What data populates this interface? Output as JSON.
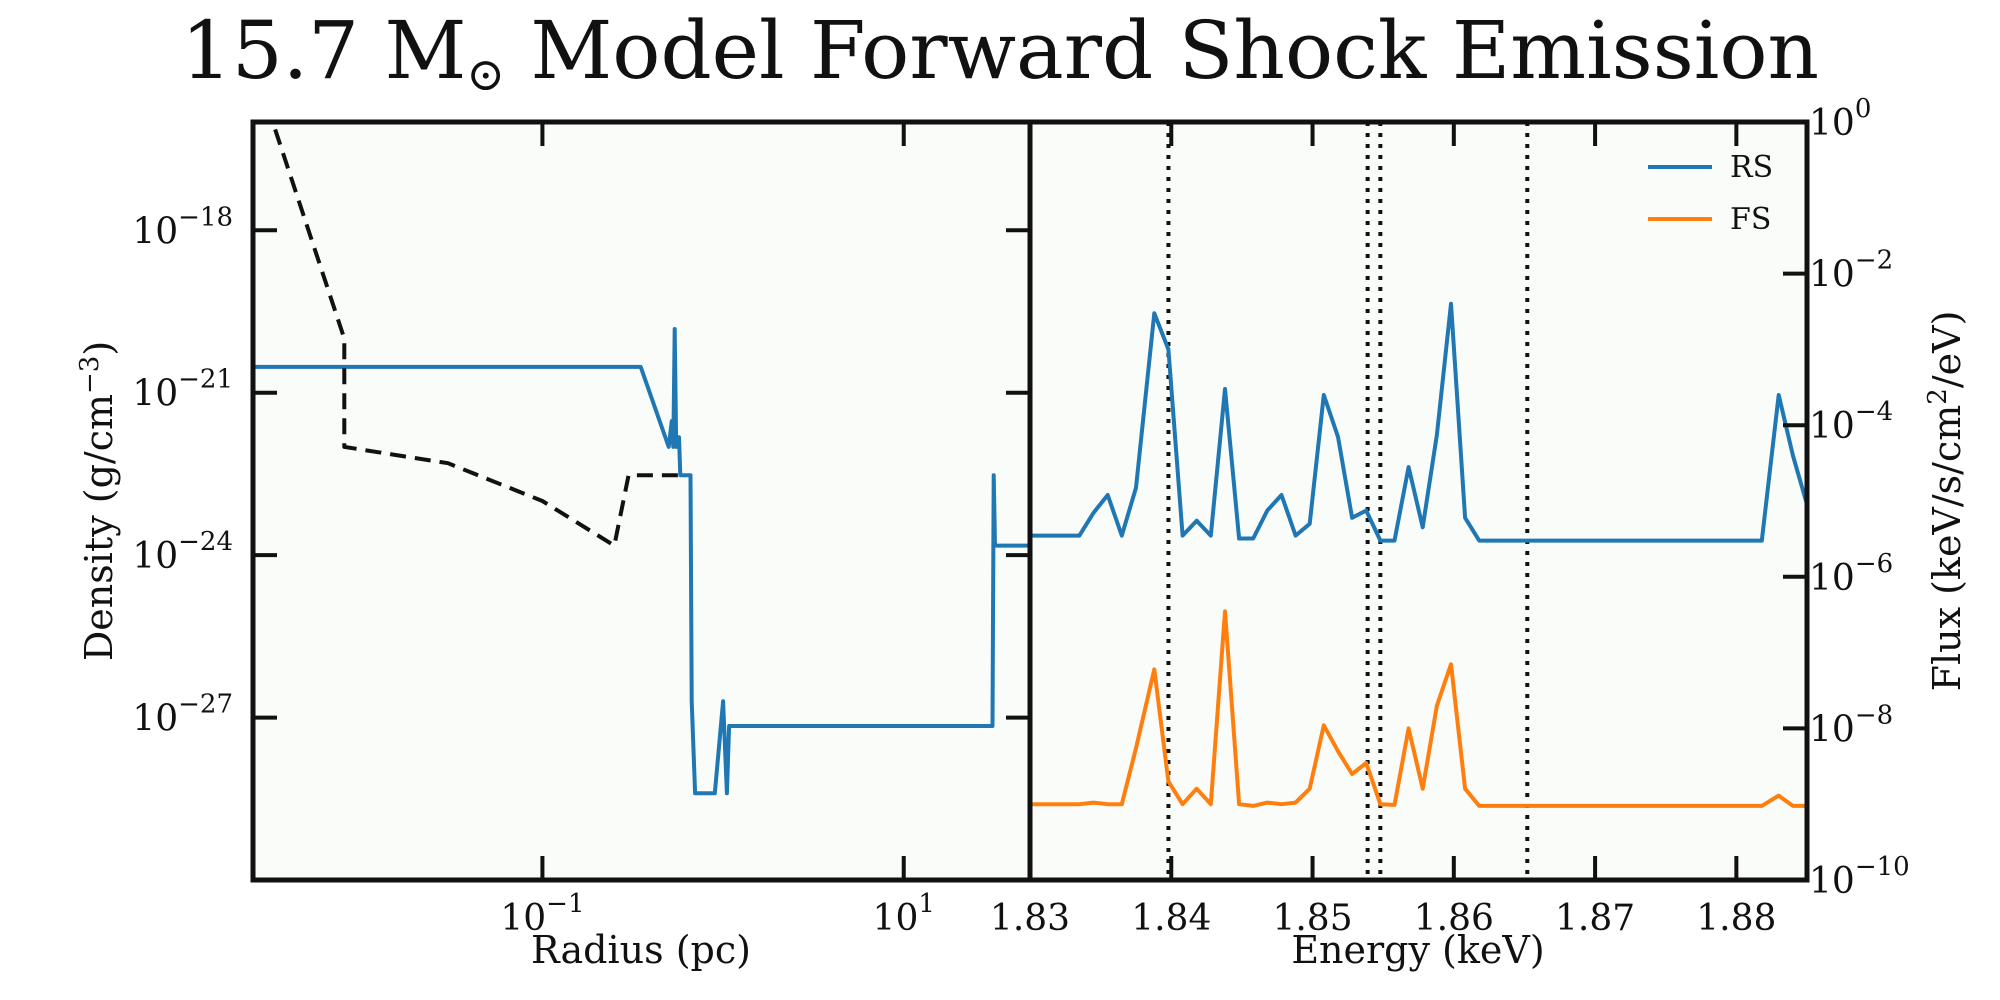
{
  "figure": {
    "title": "15.7 M",
    "title_symbol": "⊙",
    "title_rest": " Model Forward Shock Emission"
  },
  "chart_data": [
    {
      "type": "line",
      "xlabel": "Radius (pc)",
      "ylabel_main": "Density (g/cm",
      "ylabel_sup": "−3",
      "ylabel_end": ")",
      "xscale": "log",
      "yscale": "log",
      "xlim": [
        0.0025,
        50
      ],
      "ylim": [
        1e-30,
        1e-16
      ],
      "x_ticks": [
        {
          "value": 0.1,
          "base": "10",
          "exp": "−1"
        },
        {
          "value": 10,
          "base": "10",
          "exp": "1"
        }
      ],
      "y_ticks": [
        {
          "value": 1e-18,
          "base": "10",
          "exp": "−18"
        },
        {
          "value": 1e-21,
          "base": "10",
          "exp": "−21"
        },
        {
          "value": 1e-24,
          "base": "10",
          "exp": "−24"
        },
        {
          "value": 1e-27,
          "base": "10",
          "exp": "−27"
        }
      ],
      "series": [
        {
          "style": "solid",
          "color": "#1f77b4",
          "x": [
            0.0025,
            0.35,
            0.5,
            0.52,
            0.53,
            0.54,
            0.55,
            0.56,
            0.57,
            0.58,
            0.6,
            0.62,
            0.66,
            0.67,
            0.7,
            0.75,
            0.9,
            1.0,
            1.05,
            1.08,
            1.1,
            1.15,
            30,
            31,
            31.5,
            32,
            35,
            50
          ],
          "y": [
            3e-21,
            3e-21,
            1e-22,
            3e-22,
            1e-22,
            1.5e-20,
            1e-22,
            1.5e-22,
            1.5e-22,
            3e-23,
            3e-23,
            3e-23,
            3e-23,
            2e-27,
            4e-29,
            4e-29,
            4e-29,
            2e-27,
            4e-29,
            7e-28,
            7e-28,
            7e-28,
            7e-28,
            7e-28,
            3e-23,
            1.5e-24,
            1.5e-24,
            1.5e-24
          ]
        },
        {
          "style": "dashed",
          "color": "#111111",
          "x": [
            0.003,
            0.008,
            0.008,
            0.03,
            0.1,
            0.25,
            0.3,
            0.5,
            0.6
          ],
          "y": [
            2e-16,
            1e-20,
            1e-22,
            5e-23,
            1e-23,
            1.5e-24,
            3e-23,
            3e-23,
            3e-23
          ]
        }
      ]
    },
    {
      "type": "line",
      "xlabel": "Energy (keV)",
      "ylabel_main": "Flux (keV/s/cm",
      "ylabel_sup": "2",
      "ylabel_end": "/eV)",
      "yscale": "log",
      "xlim": [
        1.83,
        1.885
      ],
      "ylim": [
        1e-10,
        1
      ],
      "x_ticks": [
        {
          "value": 1.83,
          "label": "1.83"
        },
        {
          "value": 1.84,
          "label": "1.84"
        },
        {
          "value": 1.85,
          "label": "1.85"
        },
        {
          "value": 1.86,
          "label": "1.86"
        },
        {
          "value": 1.87,
          "label": "1.87"
        },
        {
          "value": 1.88,
          "label": "1.88"
        }
      ],
      "y_ticks": [
        {
          "value": 1,
          "base": "10",
          "exp": "0"
        },
        {
          "value": 0.01,
          "base": "10",
          "exp": "−2"
        },
        {
          "value": 0.0001,
          "base": "10",
          "exp": "−4"
        },
        {
          "value": 1e-06,
          "base": "10",
          "exp": "−6"
        },
        {
          "value": 1e-08,
          "base": "10",
          "exp": "−8"
        },
        {
          "value": 1e-10,
          "base": "10",
          "exp": "−10"
        }
      ],
      "vlines": [
        1.8398,
        1.8539,
        1.8548,
        1.8652
      ],
      "legend_position": "top-right",
      "series": [
        {
          "name": "RS",
          "color": "#1f77b4",
          "x": [
            1.83,
            1.8325,
            1.8335,
            1.8345,
            1.8355,
            1.8365,
            1.8375,
            1.8388,
            1.8398,
            1.8408,
            1.8418,
            1.8428,
            1.8438,
            1.8448,
            1.8458,
            1.8468,
            1.8478,
            1.8488,
            1.8498,
            1.8508,
            1.8518,
            1.8528,
            1.8538,
            1.8548,
            1.8558,
            1.8568,
            1.8578,
            1.8588,
            1.8598,
            1.8608,
            1.8618,
            1.8628,
            1.8638,
            1.8648,
            1.8658,
            1.8668,
            1.8678,
            1.8818,
            1.883,
            1.884,
            1.885
          ],
          "y": [
            3.5e-06,
            3.5e-06,
            3.5e-06,
            7e-06,
            1.2e-05,
            3.5e-06,
            1.5e-05,
            0.003,
            0.001,
            3.5e-06,
            5.5e-06,
            3.5e-06,
            0.0003,
            3.2e-06,
            3.2e-06,
            7.5e-06,
            1.2e-05,
            3.5e-06,
            5e-06,
            0.00025,
            7e-05,
            6e-06,
            7.5e-06,
            3e-06,
            3e-06,
            2.8e-05,
            4.5e-06,
            7.5e-05,
            0.004,
            6e-06,
            3e-06,
            3e-06,
            3e-06,
            3e-06,
            3e-06,
            3e-06,
            3e-06,
            3e-06,
            0.00025,
            4e-05,
            9e-06
          ]
        },
        {
          "name": "FS",
          "color": "#ff7f0e",
          "x": [
            1.83,
            1.8325,
            1.8335,
            1.8345,
            1.8355,
            1.8365,
            1.8375,
            1.8388,
            1.8398,
            1.8408,
            1.8418,
            1.8428,
            1.8438,
            1.8448,
            1.8458,
            1.8468,
            1.8478,
            1.8488,
            1.8498,
            1.8508,
            1.8518,
            1.8528,
            1.8538,
            1.8548,
            1.8558,
            1.8568,
            1.8578,
            1.8588,
            1.8598,
            1.8608,
            1.8618,
            1.8628,
            1.8638,
            1.8648,
            1.8658,
            1.8668,
            1.8678,
            1.8818,
            1.883,
            1.884,
            1.885
          ],
          "y": [
            1e-09,
            1e-09,
            1e-09,
            1.05e-09,
            1e-09,
            1e-09,
            5.5e-09,
            6e-08,
            2e-09,
            1e-09,
            1.6e-09,
            1e-09,
            3.5e-07,
            1e-09,
            9.5e-10,
            1.05e-09,
            1e-09,
            1.05e-09,
            1.6e-09,
            1.1e-08,
            5e-09,
            2.5e-09,
            3.5e-09,
            1e-09,
            9.8e-10,
            1e-08,
            1.6e-09,
            2e-08,
            7e-08,
            1.6e-09,
            9.5e-10,
            9.5e-10,
            9.5e-10,
            9.5e-10,
            9.5e-10,
            9.5e-10,
            9.5e-10,
            9.5e-10,
            1.3e-09,
            9.5e-10,
            9.5e-10
          ]
        }
      ]
    }
  ]
}
